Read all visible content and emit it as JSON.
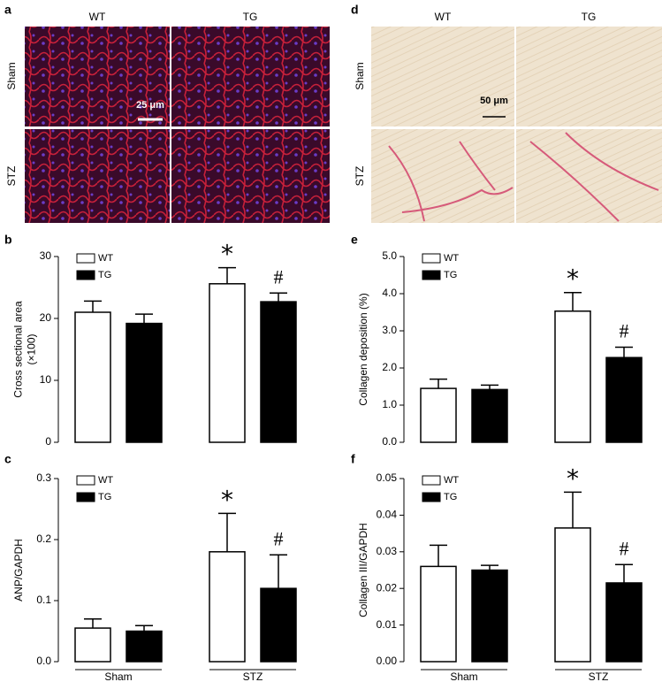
{
  "image_panels": [
    {
      "panel": "a",
      "columns": [
        "WT",
        "TG"
      ],
      "rows": [
        "Sham",
        "STZ"
      ],
      "scale_bar": "25 μm"
    },
    {
      "panel": "d",
      "columns": [
        "WT",
        "TG"
      ],
      "rows": [
        "Sham",
        "STZ"
      ],
      "scale_bar": "50 μm"
    }
  ],
  "chart_data": [
    {
      "type": "bar",
      "panel": "b",
      "ylabel": [
        "Cross sectional area",
        "(×100)"
      ],
      "categories": [
        null,
        null
      ],
      "series": [
        {
          "name": "WT",
          "color": "#ffffff",
          "values": [
            21,
            25.6
          ],
          "errors": [
            1.8,
            2.6
          ],
          "markers": [
            null,
            "*"
          ]
        },
        {
          "name": "TG",
          "color": "#000000",
          "values": [
            19.2,
            22.7
          ],
          "errors": [
            1.5,
            1.4
          ],
          "markers": [
            null,
            "#"
          ]
        }
      ],
      "ylim": [
        0,
        30
      ],
      "yticks": [
        0,
        10,
        20,
        30
      ]
    },
    {
      "type": "bar",
      "panel": "c",
      "ylabel": [
        "ANP/GAPDH"
      ],
      "categories": [
        "Sham",
        "STZ"
      ],
      "series": [
        {
          "name": "WT",
          "color": "#ffffff",
          "values": [
            0.055,
            0.18
          ],
          "errors": [
            0.015,
            0.063
          ],
          "markers": [
            null,
            "*"
          ]
        },
        {
          "name": "TG",
          "color": "#000000",
          "values": [
            0.05,
            0.12
          ],
          "errors": [
            0.009,
            0.055
          ],
          "markers": [
            null,
            "#"
          ]
        }
      ],
      "ylim": [
        0,
        0.3
      ],
      "yticks": [
        {
          "value": 0,
          "label": "0.0"
        },
        0.1,
        0.2,
        0.3
      ]
    },
    {
      "type": "bar",
      "panel": "e",
      "ylabel": [
        "Collagen deposition (%)"
      ],
      "categories": [
        null,
        null
      ],
      "series": [
        {
          "name": "WT",
          "color": "#ffffff",
          "values": [
            1.45,
            3.53
          ],
          "errors": [
            0.25,
            0.5
          ],
          "markers": [
            null,
            "*"
          ]
        },
        {
          "name": "TG",
          "color": "#000000",
          "values": [
            1.42,
            2.28
          ],
          "errors": [
            0.12,
            0.28
          ],
          "markers": [
            null,
            "#"
          ]
        }
      ],
      "ylim": [
        0,
        5
      ],
      "yticks": [
        {
          "value": 0,
          "label": "0.0"
        },
        {
          "value": 1,
          "label": "1.0"
        },
        {
          "value": 2,
          "label": "2.0"
        },
        {
          "value": 3,
          "label": "3.0"
        },
        {
          "value": 4,
          "label": "4.0"
        },
        {
          "value": 5,
          "label": "5.0"
        }
      ]
    },
    {
      "type": "bar",
      "panel": "f",
      "ylabel": [
        "Collagen III/GAPDH"
      ],
      "categories": [
        "Sham",
        "STZ"
      ],
      "series": [
        {
          "name": "WT",
          "color": "#ffffff",
          "values": [
            0.026,
            0.0365
          ],
          "errors": [
            0.0058,
            0.0098
          ],
          "markers": [
            null,
            "*"
          ]
        },
        {
          "name": "TG",
          "color": "#000000",
          "values": [
            0.025,
            0.0215
          ],
          "errors": [
            0.0013,
            0.005
          ],
          "markers": [
            null,
            "#"
          ]
        }
      ],
      "ylim": [
        0,
        0.05
      ],
      "yticks": [
        {
          "value": 0,
          "label": "0.00"
        },
        {
          "value": 0.01,
          "label": "0.01"
        },
        {
          "value": 0.02,
          "label": "0.02"
        },
        {
          "value": 0.03,
          "label": "0.03"
        },
        {
          "value": 0.04,
          "label": "0.04"
        },
        {
          "value": 0.05,
          "label": "0.05"
        }
      ]
    }
  ]
}
